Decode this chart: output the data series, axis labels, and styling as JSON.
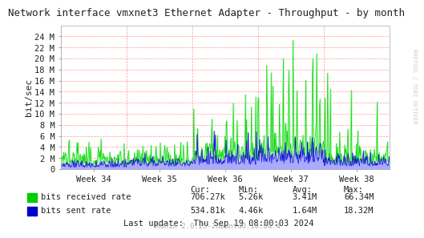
{
  "title": "Network interface vmxnet3 Ethernet Adapter - Throughput - by month",
  "ylabel": "bit/sec",
  "bg_color": "#FFFFFF",
  "plot_bg_color": "#FFFFFF",
  "grid_color": "#FF9999",
  "border_color": "#AAAAAA",
  "green_color": "#00CC00",
  "blue_color": "#0000CC",
  "green_fill": "#AAFFAA",
  "blue_fill": "#AAAAFF",
  "x_tick_labels": [
    "Week 34",
    "Week 35",
    "Week 36",
    "Week 37",
    "Week 38"
  ],
  "y_ticks": [
    0,
    2000000,
    4000000,
    6000000,
    8000000,
    10000000,
    12000000,
    14000000,
    16000000,
    18000000,
    20000000,
    22000000,
    24000000
  ],
  "y_tick_labels": [
    "0",
    "2 M",
    "4 M",
    "6 M",
    "8 M",
    "10 M",
    "12 M",
    "14 M",
    "16 M",
    "18 M",
    "20 M",
    "22 M",
    "24 M"
  ],
  "ylim": [
    0,
    26000000
  ],
  "legend_labels": [
    "bits received rate",
    "bits sent rate"
  ],
  "stats_labels": [
    "Cur:",
    "Min:",
    "Avg:",
    "Max:"
  ],
  "stats_green": [
    "706.27k",
    "5.26k",
    "3.41M",
    "66.34M"
  ],
  "stats_blue": [
    "534.81k",
    "4.46k",
    "1.64M",
    "18.32M"
  ],
  "last_update": "Last update:  Thu Sep 19 08:00:03 2024",
  "munin_label": "Munin 2.0.25-2ubuntu0.16.04.4",
  "rrdtool_label": "RRDTOOL / TOBI OETIKER",
  "num_points": 600
}
